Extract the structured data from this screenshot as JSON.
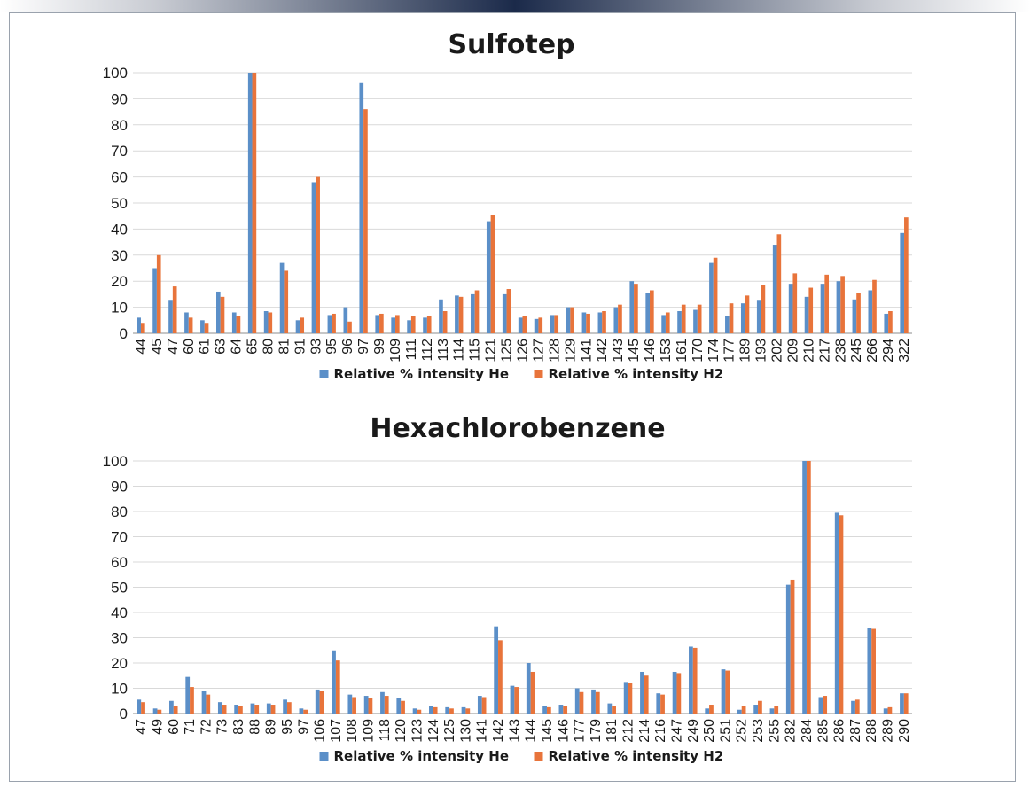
{
  "series_colors": {
    "He": "#5b8fc8",
    "H2": "#e8743b"
  },
  "chart_data": [
    {
      "type": "bar",
      "title": "Sulfotep",
      "ylim": [
        0,
        100
      ],
      "yticks": [
        0,
        10,
        20,
        30,
        40,
        50,
        60,
        70,
        80,
        90,
        100
      ],
      "grid": true,
      "legend": "bottom",
      "categories": [
        "44",
        "45",
        "47",
        "60",
        "61",
        "63",
        "64",
        "65",
        "80",
        "81",
        "91",
        "93",
        "95",
        "96",
        "97",
        "99",
        "109",
        "111",
        "112",
        "113",
        "114",
        "115",
        "121",
        "125",
        "126",
        "127",
        "128",
        "129",
        "141",
        "142",
        "143",
        "145",
        "146",
        "153",
        "161",
        "170",
        "174",
        "177",
        "189",
        "193",
        "202",
        "209",
        "210",
        "217",
        "238",
        "245",
        "266",
        "294",
        "322"
      ],
      "series": [
        {
          "name": "Relative % intensity He",
          "values": [
            6,
            25,
            12.5,
            8,
            5,
            16,
            8,
            100,
            8.5,
            27,
            5,
            58,
            7,
            10,
            96,
            7,
            6,
            5,
            6,
            13,
            14.5,
            15,
            43,
            15,
            6,
            5.5,
            7,
            10,
            8,
            8,
            10,
            20,
            15.5,
            7,
            8.5,
            9,
            27,
            6.5,
            11.5,
            12.5,
            34,
            19,
            14,
            19,
            20,
            13,
            16.5,
            7.5,
            38.5
          ]
        },
        {
          "name": "Relative % intensity H2",
          "values": [
            4,
            30,
            18,
            6,
            4,
            14,
            6.5,
            100,
            8,
            24,
            6,
            60,
            7.5,
            4.5,
            86,
            7.5,
            7,
            6.5,
            6.5,
            8.5,
            14,
            16.5,
            45.5,
            17,
            6.5,
            6,
            7,
            10,
            7.5,
            8.5,
            11,
            19,
            16.5,
            8,
            11,
            11,
            29,
            11.5,
            14.5,
            18.5,
            38,
            23,
            17.5,
            22.5,
            22,
            15.5,
            20.5,
            8.5,
            44.5
          ]
        }
      ]
    },
    {
      "type": "bar",
      "title": "Hexachlorobenzene",
      "ylim": [
        0,
        100
      ],
      "yticks": [
        0,
        10,
        20,
        30,
        40,
        50,
        60,
        70,
        80,
        90,
        100
      ],
      "grid": true,
      "legend": "bottom",
      "categories": [
        "47",
        "49",
        "60",
        "71",
        "72",
        "73",
        "83",
        "88",
        "89",
        "95",
        "97",
        "106",
        "107",
        "108",
        "109",
        "118",
        "120",
        "123",
        "124",
        "125",
        "130",
        "141",
        "142",
        "143",
        "144",
        "145",
        "146",
        "177",
        "179",
        "181",
        "212",
        "214",
        "216",
        "247",
        "249",
        "250",
        "251",
        "252",
        "253",
        "255",
        "282",
        "284",
        "285",
        "286",
        "287",
        "288",
        "289",
        "290"
      ],
      "series": [
        {
          "name": "Relative % intensity He",
          "values": [
            5.5,
            2,
            5,
            14.5,
            9,
            4.5,
            3.5,
            4,
            4,
            5.5,
            2,
            9.5,
            25,
            7.5,
            7,
            8.5,
            6,
            2,
            3,
            2.5,
            2.5,
            7,
            34.5,
            11,
            20,
            3,
            3.5,
            10,
            9.5,
            4,
            12.5,
            16.5,
            8,
            16.5,
            26.5,
            2,
            17.5,
            1.5,
            3.5,
            2,
            51,
            100,
            6.5,
            79.5,
            5,
            34,
            2,
            8
          ]
        },
        {
          "name": "Relative % intensity H2",
          "values": [
            4.5,
            1.5,
            3,
            10.5,
            7.5,
            3.5,
            3,
            3.5,
            3.5,
            4.5,
            1.5,
            9,
            21,
            6.5,
            6,
            7,
            5,
            1.5,
            2.5,
            2,
            2,
            6.5,
            29,
            10.5,
            16.5,
            2.5,
            3,
            8.5,
            8.5,
            3,
            12,
            15,
            7.5,
            16,
            26,
            3.5,
            17,
            3,
            5,
            3,
            53,
            100,
            7,
            78.5,
            5.5,
            33.5,
            2.5,
            8
          ]
        }
      ]
    }
  ]
}
